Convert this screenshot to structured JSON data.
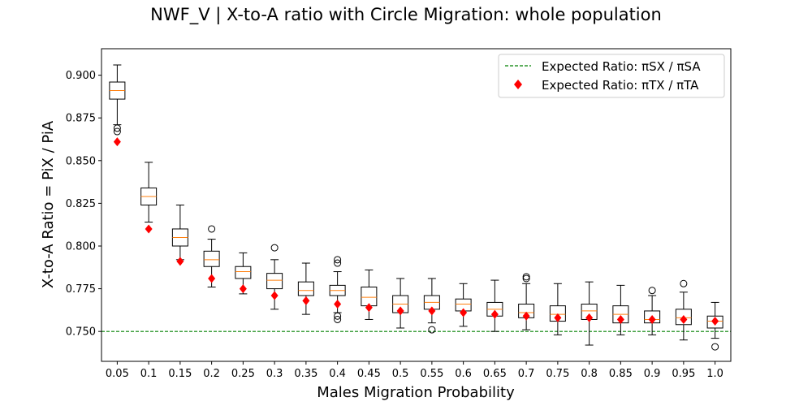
{
  "chart_data": {
    "type": "boxplot",
    "title": "NWF_V | X-to-A ratio with Circle Migration: whole population",
    "xlabel": "Males Migration Probability",
    "ylabel": "X-to-A Ratio = PiX / PiA",
    "categories": [
      "0.05",
      "0.1",
      "0.15",
      "0.2",
      "0.25",
      "0.3",
      "0.35",
      "0.4",
      "0.45",
      "0.5",
      "0.55",
      "0.6",
      "0.65",
      "0.7",
      "0.75",
      "0.8",
      "0.85",
      "0.9",
      "0.95",
      "1.0"
    ],
    "ylim": [
      0.7325,
      0.9155
    ],
    "yticks": [
      0.75,
      0.775,
      0.8,
      0.825,
      0.85,
      0.875,
      0.9
    ],
    "ytick_labels": [
      "0.750",
      "0.775",
      "0.800",
      "0.825",
      "0.850",
      "0.875",
      "0.900"
    ],
    "boxes": [
      {
        "whislo": 0.871,
        "q1": 0.886,
        "med": 0.891,
        "q3": 0.896,
        "whishi": 0.906,
        "fliers": [
          0.869,
          0.867
        ]
      },
      {
        "whislo": 0.814,
        "q1": 0.824,
        "med": 0.829,
        "q3": 0.834,
        "whishi": 0.849,
        "fliers": []
      },
      {
        "whislo": 0.792,
        "q1": 0.8,
        "med": 0.805,
        "q3": 0.81,
        "whishi": 0.824,
        "fliers": []
      },
      {
        "whislo": 0.776,
        "q1": 0.788,
        "med": 0.792,
        "q3": 0.797,
        "whishi": 0.804,
        "fliers": [
          0.81
        ]
      },
      {
        "whislo": 0.772,
        "q1": 0.781,
        "med": 0.785,
        "q3": 0.788,
        "whishi": 0.796,
        "fliers": []
      },
      {
        "whislo": 0.763,
        "q1": 0.775,
        "med": 0.78,
        "q3": 0.784,
        "whishi": 0.792,
        "fliers": [
          0.799
        ]
      },
      {
        "whislo": 0.76,
        "q1": 0.771,
        "med": 0.774,
        "q3": 0.779,
        "whishi": 0.79,
        "fliers": []
      },
      {
        "whislo": 0.761,
        "q1": 0.771,
        "med": 0.774,
        "q3": 0.777,
        "whishi": 0.785,
        "fliers": [
          0.792,
          0.79,
          0.759,
          0.757
        ]
      },
      {
        "whislo": 0.757,
        "q1": 0.765,
        "med": 0.77,
        "q3": 0.776,
        "whishi": 0.786,
        "fliers": []
      },
      {
        "whislo": 0.752,
        "q1": 0.761,
        "med": 0.766,
        "q3": 0.771,
        "whishi": 0.781,
        "fliers": []
      },
      {
        "whislo": 0.755,
        "q1": 0.763,
        "med": 0.767,
        "q3": 0.771,
        "whishi": 0.781,
        "fliers": [
          0.751
        ]
      },
      {
        "whislo": 0.753,
        "q1": 0.762,
        "med": 0.766,
        "q3": 0.769,
        "whishi": 0.778,
        "fliers": []
      },
      {
        "whislo": 0.75,
        "q1": 0.759,
        "med": 0.763,
        "q3": 0.767,
        "whishi": 0.78,
        "fliers": []
      },
      {
        "whislo": 0.751,
        "q1": 0.758,
        "med": 0.761,
        "q3": 0.766,
        "whishi": 0.778,
        "fliers": [
          0.782,
          0.781
        ]
      },
      {
        "whislo": 0.748,
        "q1": 0.756,
        "med": 0.76,
        "q3": 0.765,
        "whishi": 0.778,
        "fliers": []
      },
      {
        "whislo": 0.742,
        "q1": 0.757,
        "med": 0.762,
        "q3": 0.766,
        "whishi": 0.779,
        "fliers": []
      },
      {
        "whislo": 0.748,
        "q1": 0.755,
        "med": 0.76,
        "q3": 0.765,
        "whishi": 0.777,
        "fliers": []
      },
      {
        "whislo": 0.748,
        "q1": 0.755,
        "med": 0.757,
        "q3": 0.762,
        "whishi": 0.771,
        "fliers": [
          0.774
        ]
      },
      {
        "whislo": 0.745,
        "q1": 0.754,
        "med": 0.758,
        "q3": 0.763,
        "whishi": 0.773,
        "fliers": [
          0.778
        ]
      },
      {
        "whislo": 0.746,
        "q1": 0.752,
        "med": 0.756,
        "q3": 0.759,
        "whishi": 0.767,
        "fliers": [
          0.741
        ]
      }
    ],
    "expected_tx_ta": [
      0.861,
      0.81,
      0.791,
      0.781,
      0.775,
      0.771,
      0.768,
      0.766,
      0.764,
      0.762,
      0.762,
      0.761,
      0.76,
      0.759,
      0.758,
      0.758,
      0.757,
      0.757,
      0.757,
      0.756
    ],
    "expected_sx_sa": 0.75,
    "legend": {
      "placement": "upper right",
      "entries": [
        {
          "label": "Expected Ratio: πSX / πSA",
          "color": "#008000",
          "style": "dashed-line"
        },
        {
          "label": "Expected Ratio: πTX / πTA",
          "color": "#ff0000",
          "style": "diamond"
        }
      ]
    },
    "colors": {
      "box": "#000000",
      "median": "#ff7f0e",
      "tx_ta_marker": "#ff0000",
      "sx_sa_line": "#008000"
    }
  }
}
